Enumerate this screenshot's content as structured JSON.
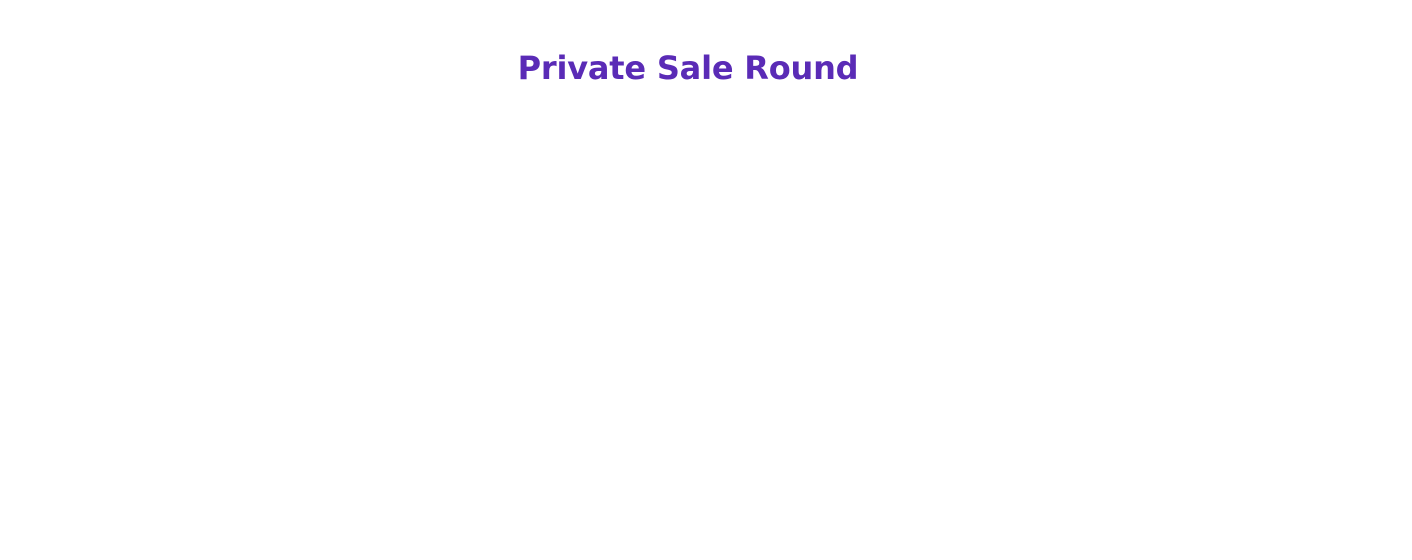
{
  "section": {
    "title": "Private Sale Round"
  },
  "colors": {
    "title": "#5a2bb6",
    "background": "#ffffff"
  }
}
